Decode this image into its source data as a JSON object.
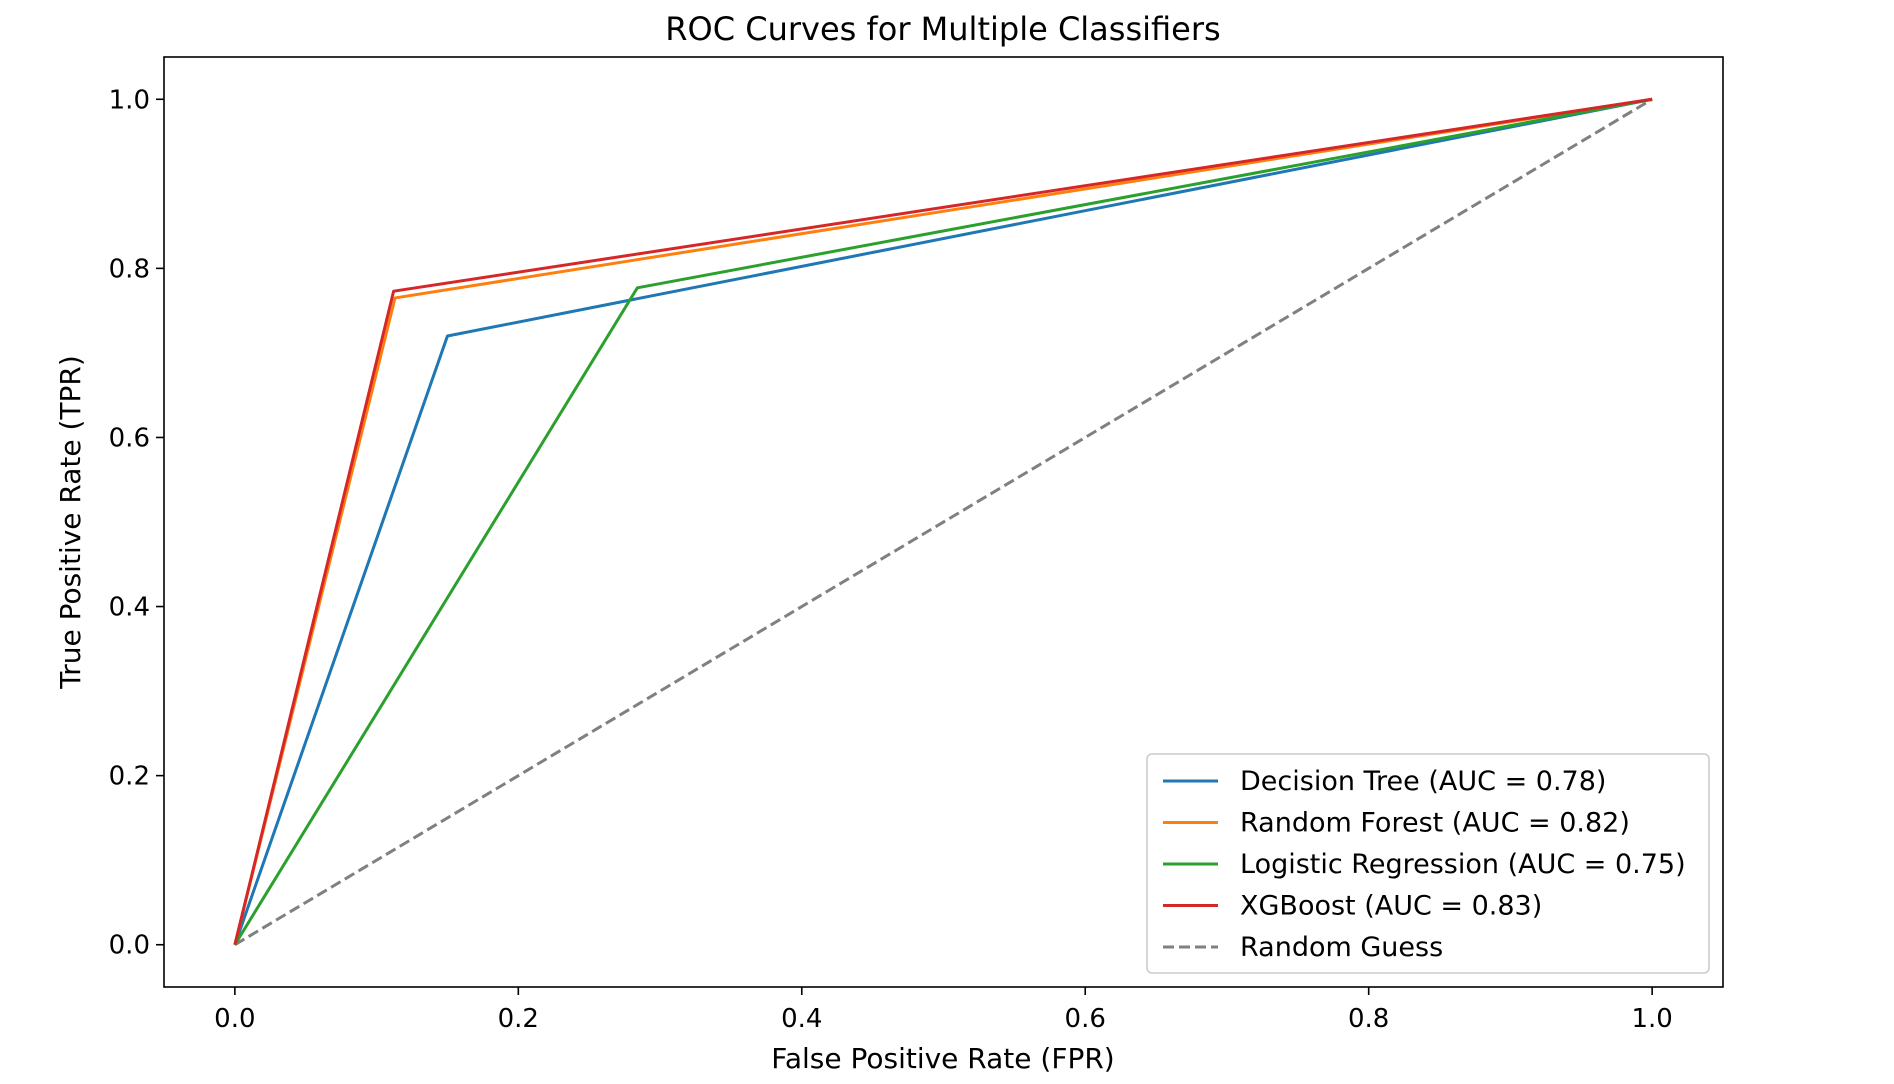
{
  "chart_data": {
    "type": "line",
    "title": "ROC Curves for Multiple Classifiers",
    "xlabel": "False Positive Rate (FPR)",
    "ylabel": "True Positive Rate (TPR)",
    "xlim": [
      -0.05,
      1.05
    ],
    "ylim": [
      -0.05,
      1.05
    ],
    "xticks": [
      "0.0",
      "0.2",
      "0.4",
      "0.6",
      "0.8",
      "1.0"
    ],
    "yticks": [
      "0.0",
      "0.2",
      "0.4",
      "0.6",
      "0.8",
      "1.0"
    ],
    "grid": false,
    "legend_position": "lower-right",
    "series": [
      {
        "name": "Decision Tree (AUC = 0.78)",
        "color": "#1f77b4",
        "dash": "solid",
        "x": [
          0.0,
          0.15,
          1.0
        ],
        "y": [
          0.0,
          0.72,
          1.0
        ]
      },
      {
        "name": "Random Forest (AUC = 0.82)",
        "color": "#ff7f0e",
        "dash": "solid",
        "x": [
          0.0,
          0.113,
          1.0
        ],
        "y": [
          0.0,
          0.765,
          1.0
        ]
      },
      {
        "name": "Logistic Regression (AUC = 0.75)",
        "color": "#2ca02c",
        "dash": "solid",
        "x": [
          0.0,
          0.284,
          1.0
        ],
        "y": [
          0.0,
          0.777,
          1.0
        ]
      },
      {
        "name": "XGBoost (AUC = 0.83)",
        "color": "#d62728",
        "dash": "solid",
        "x": [
          0.0,
          0.112,
          1.0
        ],
        "y": [
          0.0,
          0.773,
          1.0
        ]
      },
      {
        "name": "Random Guess",
        "color": "#808080",
        "dash": "dashed",
        "x": [
          0.0,
          1.0
        ],
        "y": [
          0.0,
          1.0
        ]
      }
    ]
  }
}
